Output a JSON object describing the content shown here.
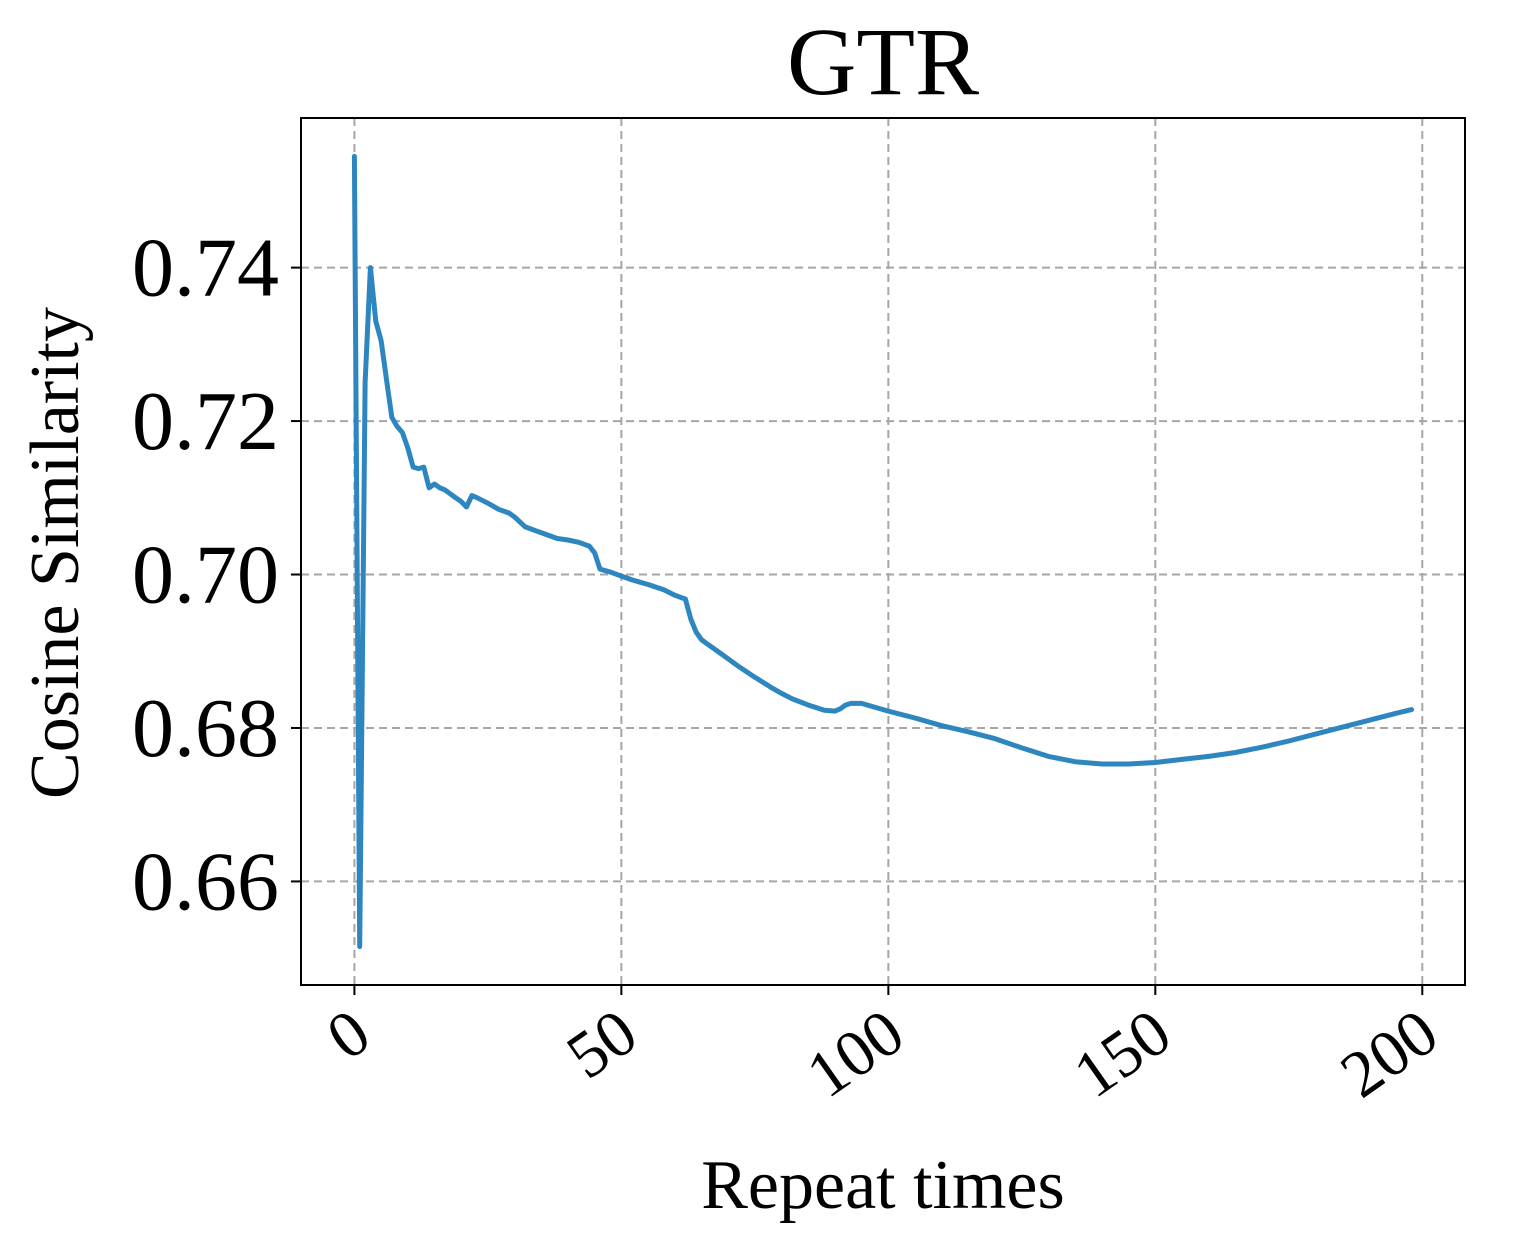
{
  "chart_data": {
    "type": "line",
    "title": "GTR",
    "xlabel": "Repeat times",
    "ylabel": "Cosine Similarity",
    "xlim": [
      -10,
      208
    ],
    "ylim": [
      0.6465,
      0.7595
    ],
    "xticks": [
      0,
      50,
      100,
      150,
      200
    ],
    "xtick_labels": [
      "0",
      "50",
      "100",
      "150",
      "200"
    ],
    "yticks": [
      0.66,
      0.68,
      0.7,
      0.72,
      0.74
    ],
    "ytick_labels": [
      "0.66",
      "0.68",
      "0.70",
      "0.72",
      "0.74"
    ],
    "grid": true,
    "legend": "none",
    "series": [
      {
        "color": "#2e86c1",
        "x": [
          0,
          1,
          2,
          3,
          4,
          5,
          6,
          7,
          8,
          9,
          10,
          11,
          12,
          13,
          14,
          15,
          16,
          17,
          18,
          19,
          20,
          21,
          22,
          23,
          25,
          27,
          29,
          30,
          32,
          34,
          36,
          38,
          40,
          42,
          44,
          45,
          46,
          48,
          50,
          52,
          55,
          58,
          60,
          62,
          63,
          64,
          65,
          66,
          68,
          70,
          72,
          75,
          78,
          80,
          82,
          85,
          88,
          90,
          91,
          92,
          93,
          95,
          97,
          100,
          105,
          110,
          115,
          120,
          125,
          130,
          135,
          140,
          145,
          150,
          155,
          160,
          165,
          170,
          175,
          180,
          185,
          190,
          195,
          198
        ],
        "y": [
          0.7545,
          0.6515,
          0.725,
          0.74,
          0.733,
          0.7305,
          0.7255,
          0.7205,
          0.7193,
          0.7185,
          0.7165,
          0.714,
          0.7138,
          0.714,
          0.7113,
          0.7118,
          0.7113,
          0.711,
          0.7105,
          0.71,
          0.7095,
          0.7088,
          0.7103,
          0.71,
          0.7093,
          0.7085,
          0.708,
          0.7075,
          0.7062,
          0.7057,
          0.7052,
          0.7047,
          0.7045,
          0.7042,
          0.7037,
          0.7028,
          0.7007,
          0.7003,
          0.6998,
          0.6993,
          0.6987,
          0.698,
          0.6973,
          0.6968,
          0.6942,
          0.6925,
          0.6915,
          0.691,
          0.69,
          0.689,
          0.688,
          0.6866,
          0.6853,
          0.6845,
          0.6838,
          0.683,
          0.6823,
          0.6822,
          0.6825,
          0.683,
          0.6832,
          0.6832,
          0.6828,
          0.6822,
          0.6813,
          0.6803,
          0.6795,
          0.6786,
          0.6774,
          0.6763,
          0.6756,
          0.6753,
          0.6753,
          0.6755,
          0.6759,
          0.6763,
          0.6768,
          0.6775,
          0.6783,
          0.6792,
          0.6801,
          0.681,
          0.6819,
          0.6824
        ]
      }
    ]
  }
}
